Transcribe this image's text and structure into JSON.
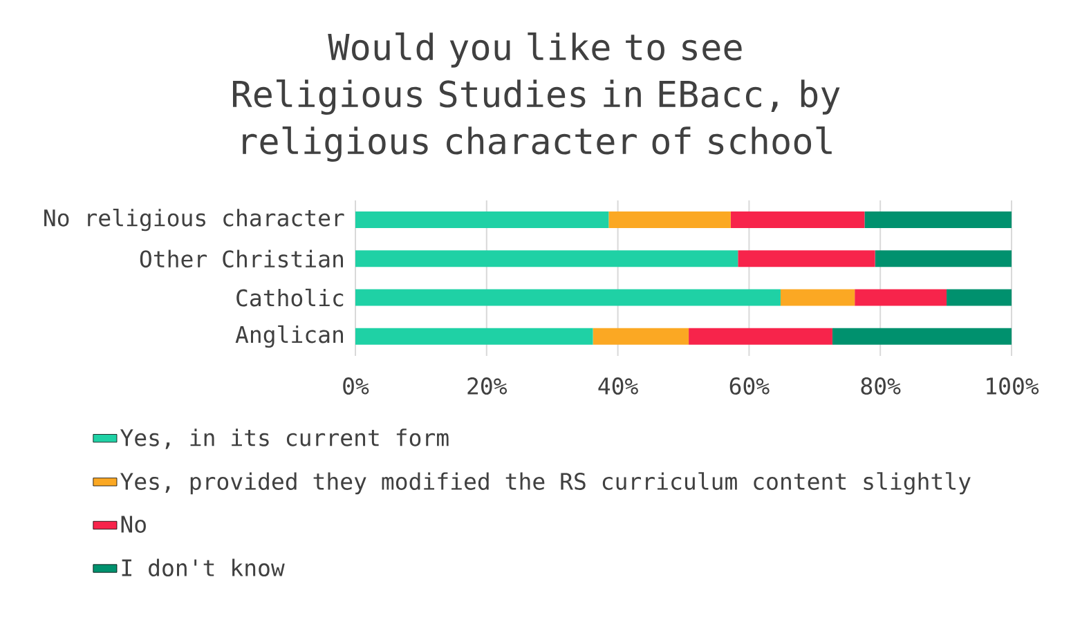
{
  "chart_data": {
    "type": "bar",
    "orientation": "horizontal",
    "stacked": true,
    "title": "Would you like to see Religious Studies in EBacc, by religious character of school",
    "categories": [
      "No religious character",
      "Other Christian",
      "Catholic",
      "Anglican"
    ],
    "series": [
      {
        "name": "Yes, in its current form",
        "color": "#1fd1a5",
        "values": [
          38.6,
          58.3,
          64.8,
          36.2
        ]
      },
      {
        "name": "Yes, provided they modified the RS curriculum content slightly",
        "color": "#fba823",
        "values": [
          18.6,
          0,
          11.3,
          14.6
        ]
      },
      {
        "name": "No",
        "color": "#f7244b",
        "values": [
          20.4,
          20.9,
          14.0,
          21.9
        ]
      },
      {
        "name": "I don't know",
        "color": "#00916e",
        "values": [
          22.4,
          20.8,
          9.9,
          27.3
        ]
      }
    ],
    "xlim": [
      0,
      100
    ],
    "xticks": [
      {
        "value": 0,
        "label": "0%"
      },
      {
        "value": 20,
        "label": "20%"
      },
      {
        "value": 40,
        "label": "40%"
      },
      {
        "value": 60,
        "label": "60%"
      },
      {
        "value": 80,
        "label": "80%"
      },
      {
        "value": 100,
        "label": "100%"
      }
    ],
    "grid": "x",
    "legend": "bottom"
  }
}
